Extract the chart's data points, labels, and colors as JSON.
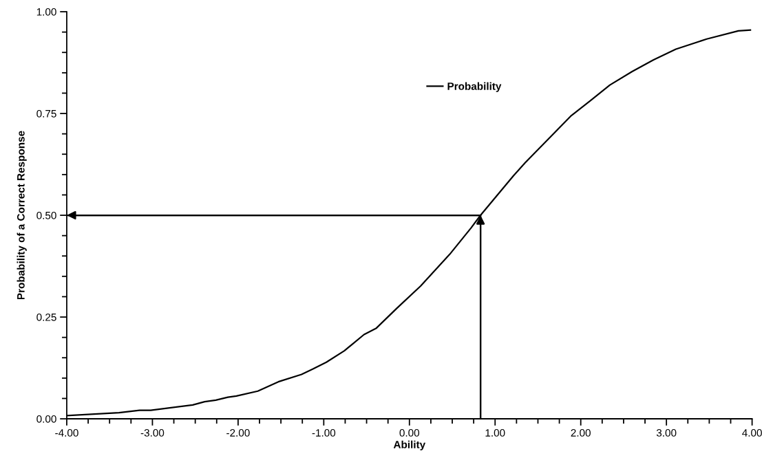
{
  "chart_data": {
    "type": "line",
    "xlabel": "Ability",
    "ylabel": "Probability of a Correct Response",
    "xlim": [
      -4,
      4
    ],
    "ylim": [
      0,
      1
    ],
    "xticks": [
      {
        "value": -4,
        "label": "-4.00"
      },
      {
        "value": -3.75,
        "label": null
      },
      {
        "value": -3.5,
        "label": null
      },
      {
        "value": -3.25,
        "label": null
      },
      {
        "value": -3,
        "label": "-3.00"
      },
      {
        "value": -2.75,
        "label": null
      },
      {
        "value": -2.5,
        "label": null
      },
      {
        "value": -2.25,
        "label": null
      },
      {
        "value": -2,
        "label": "-2.00"
      },
      {
        "value": -1.75,
        "label": null
      },
      {
        "value": -1.5,
        "label": null
      },
      {
        "value": -1.25,
        "label": null
      },
      {
        "value": -1,
        "label": "-1.00"
      },
      {
        "value": -0.75,
        "label": null
      },
      {
        "value": -0.5,
        "label": null
      },
      {
        "value": -0.25,
        "label": null
      },
      {
        "value": 0,
        "label": "0.00"
      },
      {
        "value": 0.25,
        "label": null
      },
      {
        "value": 0.5,
        "label": null
      },
      {
        "value": 0.75,
        "label": null
      },
      {
        "value": 1,
        "label": "1.00"
      },
      {
        "value": 1.25,
        "label": null
      },
      {
        "value": 1.5,
        "label": null
      },
      {
        "value": 1.75,
        "label": null
      },
      {
        "value": 2,
        "label": "2.00"
      },
      {
        "value": 2.25,
        "label": null
      },
      {
        "value": 2.5,
        "label": null
      },
      {
        "value": 2.75,
        "label": null
      },
      {
        "value": 3,
        "label": "3.00"
      },
      {
        "value": 3.25,
        "label": null
      },
      {
        "value": 3.5,
        "label": null
      },
      {
        "value": 3.75,
        "label": null
      },
      {
        "value": 4,
        "label": "4.00"
      }
    ],
    "yticks": [
      {
        "value": 0,
        "label": "0.00"
      },
      {
        "value": 0.05,
        "label": null
      },
      {
        "value": 0.1,
        "label": null
      },
      {
        "value": 0.15,
        "label": null
      },
      {
        "value": 0.2,
        "label": null
      },
      {
        "value": 0.25,
        "label": "0.25"
      },
      {
        "value": 0.3,
        "label": null
      },
      {
        "value": 0.35,
        "label": null
      },
      {
        "value": 0.4,
        "label": null
      },
      {
        "value": 0.45,
        "label": null
      },
      {
        "value": 0.5,
        "label": "0.50"
      },
      {
        "value": 0.55,
        "label": null
      },
      {
        "value": 0.6,
        "label": null
      },
      {
        "value": 0.65,
        "label": null
      },
      {
        "value": 0.7,
        "label": null
      },
      {
        "value": 0.75,
        "label": "0.75"
      },
      {
        "value": 0.8,
        "label": null
      },
      {
        "value": 0.85,
        "label": null
      },
      {
        "value": 0.9,
        "label": null
      },
      {
        "value": 0.95,
        "label": null
      },
      {
        "value": 1,
        "label": "1.00"
      }
    ],
    "grid": false,
    "legend": "top",
    "marker": "none",
    "line_style": "solid",
    "series": [
      {
        "name": "Probability",
        "color": "#000000",
        "x": [
          -4,
          -3.39,
          -3.15,
          -3.02,
          -2.53,
          -2.39,
          -2.26,
          -2.12,
          -2.02,
          -1.77,
          -1.53,
          -1.26,
          -1.13,
          -0.97,
          -0.76,
          -0.53,
          -0.39,
          -0.15,
          0.13,
          0.47,
          0.72,
          0.83,
          1.21,
          1.35,
          1.89,
          2.11,
          2.34,
          2.6,
          2.85,
          3.11,
          3.47,
          3.84,
          3.98
        ],
        "values": [
          0.008,
          0.015,
          0.021,
          0.021,
          0.034,
          0.042,
          0.046,
          0.053,
          0.056,
          0.068,
          0.091,
          0.109,
          0.122,
          0.139,
          0.167,
          0.207,
          0.222,
          0.271,
          0.326,
          0.404,
          0.469,
          0.5,
          0.596,
          0.629,
          0.745,
          0.781,
          0.82,
          0.853,
          0.882,
          0.908,
          0.933,
          0.953,
          0.955
        ]
      },
      {
        "type": "line",
        "color": "#000000",
        "x": [
          0.83,
          -4
        ],
        "values": [
          0.5,
          0.5
        ]
      },
      {
        "type": "line",
        "color": "#000000",
        "x": [
          0.83,
          0.83
        ],
        "values": [
          0,
          0.5
        ]
      }
    ]
  }
}
